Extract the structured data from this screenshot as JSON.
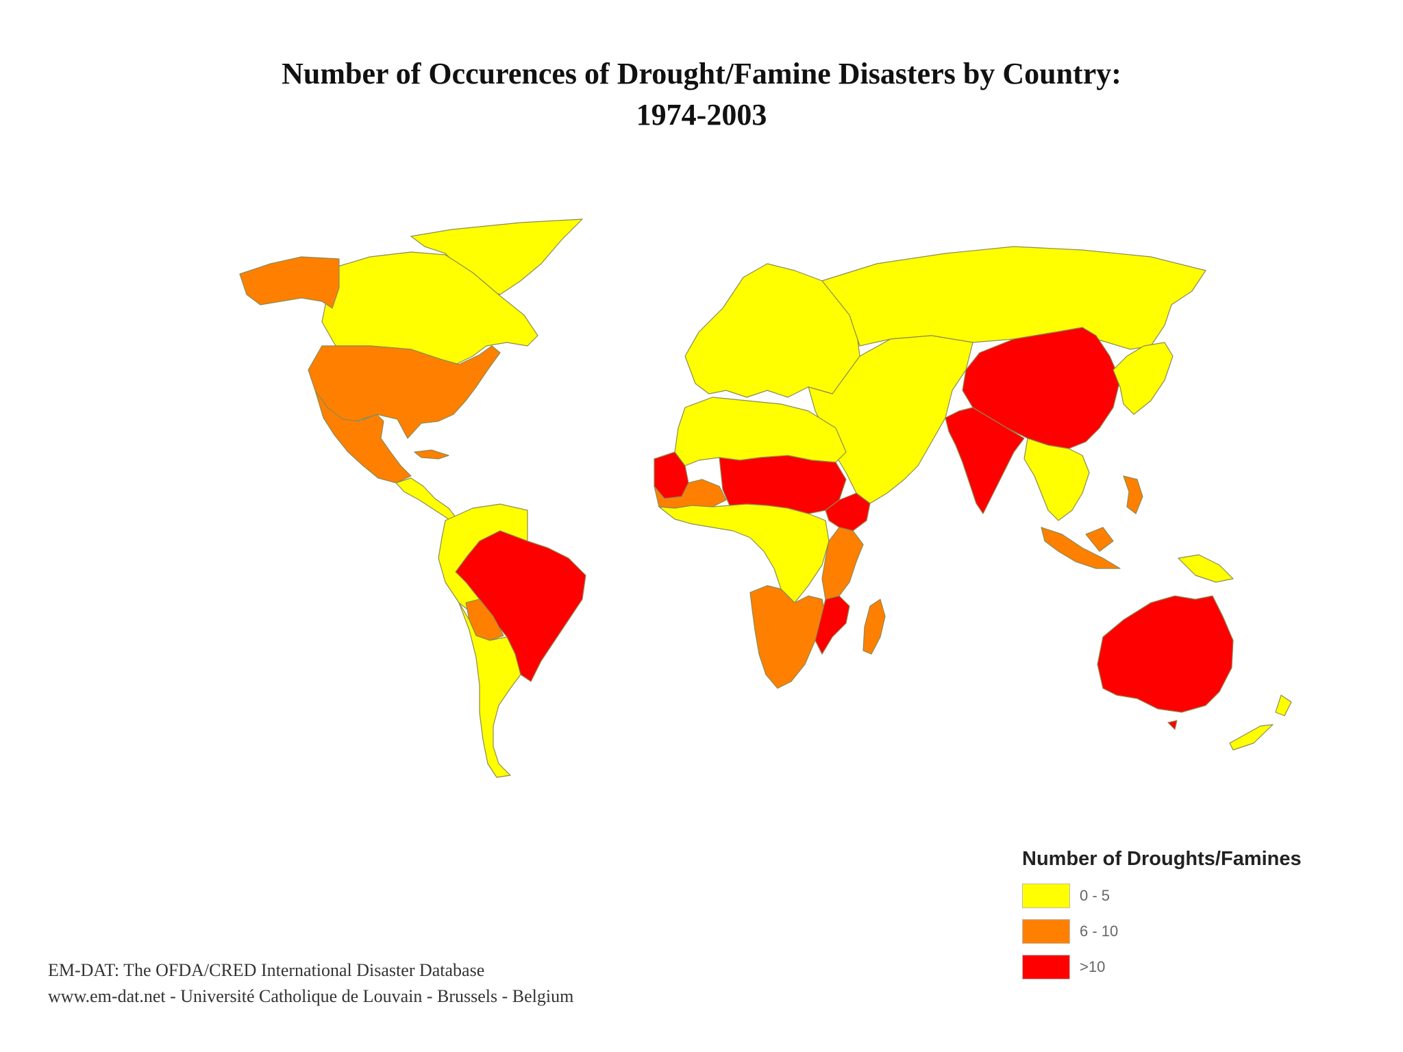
{
  "title": {
    "line1": "Number of Occurences of Drought/Famine Disasters by Country:",
    "line2": "1974-2003"
  },
  "legend": {
    "title": "Number of Droughts/Famines",
    "items": [
      {
        "label": "0 - 5",
        "color": "#ffff00"
      },
      {
        "label": "6 - 10",
        "color": "#ff8000"
      },
      {
        "label": ">10",
        "color": "#ff0000"
      }
    ]
  },
  "source": {
    "line1": "EM-DAT: The OFDA/CRED International Disaster Database",
    "line2": "www.em-dat.net - Université Catholique de Louvain - Brussels - Belgium"
  },
  "map_data": {
    "type": "choropleth",
    "classes": {
      "low": {
        "range": "0 - 5",
        "color": "#ffff00"
      },
      "mid": {
        "range": "6 - 10",
        "color": "#ff8000"
      },
      "high": {
        "range": ">10",
        "color": "#ff0000"
      }
    },
    "regions": [
      {
        "name": "Canada",
        "class": "low"
      },
      {
        "name": "Greenland",
        "class": "low"
      },
      {
        "name": "Alaska",
        "class": "mid"
      },
      {
        "name": "United States",
        "class": "mid"
      },
      {
        "name": "Mexico",
        "class": "mid"
      },
      {
        "name": "Cuba",
        "class": "mid"
      },
      {
        "name": "Central America",
        "class": "low"
      },
      {
        "name": "Northern South America",
        "class": "low"
      },
      {
        "name": "Brazil",
        "class": "high"
      },
      {
        "name": "Bolivia",
        "class": "mid"
      },
      {
        "name": "Southern Cone",
        "class": "low"
      },
      {
        "name": "Europe",
        "class": "low"
      },
      {
        "name": "Russia",
        "class": "low"
      },
      {
        "name": "Middle East and Central Asia",
        "class": "low"
      },
      {
        "name": "North Africa",
        "class": "low"
      },
      {
        "name": "Mauritania",
        "class": "high"
      },
      {
        "name": "Senegal / Mali",
        "class": "mid"
      },
      {
        "name": "Niger / Chad / Sudan",
        "class": "high"
      },
      {
        "name": "Ethiopia",
        "class": "high"
      },
      {
        "name": "West and Central Africa",
        "class": "low"
      },
      {
        "name": "Kenya / Tanzania",
        "class": "mid"
      },
      {
        "name": "Southern Africa",
        "class": "mid"
      },
      {
        "name": "Mozambique",
        "class": "high"
      },
      {
        "name": "Madagascar",
        "class": "mid"
      },
      {
        "name": "China",
        "class": "high"
      },
      {
        "name": "India",
        "class": "high"
      },
      {
        "name": "Southeast Asia",
        "class": "low"
      },
      {
        "name": "Japan / Korea",
        "class": "low"
      },
      {
        "name": "Indonesia",
        "class": "mid"
      },
      {
        "name": "Philippines",
        "class": "mid"
      },
      {
        "name": "Papua New Guinea",
        "class": "low"
      },
      {
        "name": "Australia",
        "class": "high"
      },
      {
        "name": "New Zealand",
        "class": "low"
      }
    ]
  }
}
